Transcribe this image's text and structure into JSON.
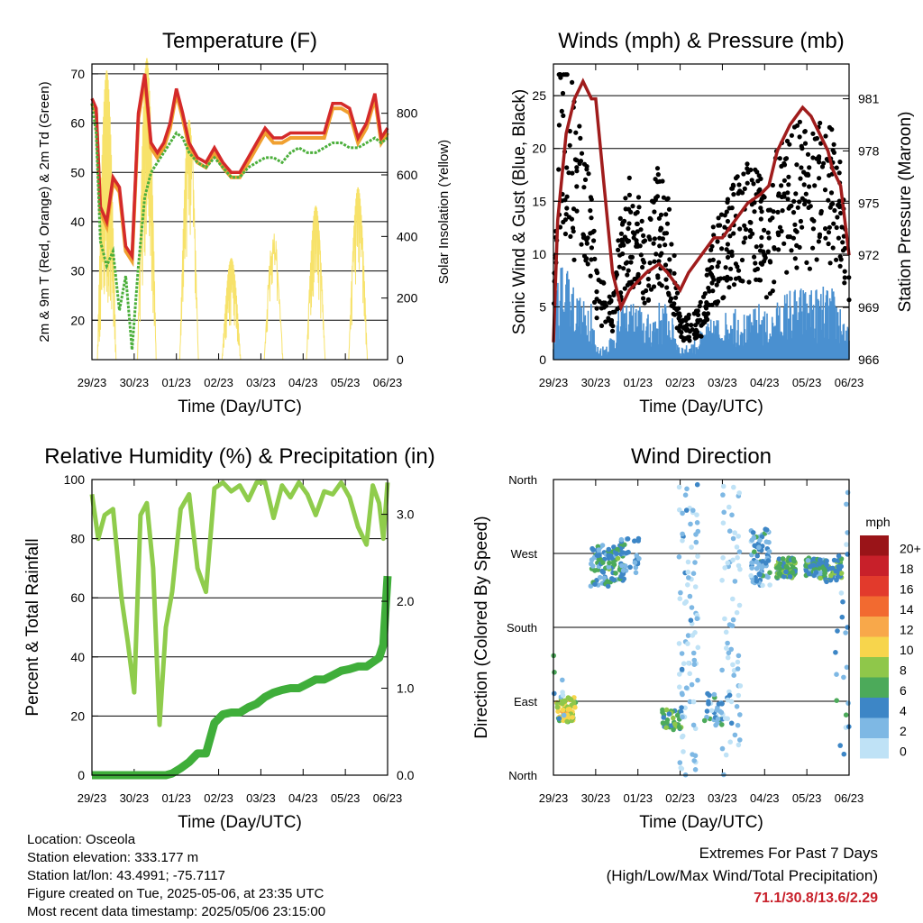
{
  "chart_data": [
    {
      "id": "temperature",
      "type": "line",
      "title": "Temperature (F)",
      "xlabel": "Time (Day/UTC)",
      "ylabel": "2m & 9m T (Red, Orange) & 2m Td (Green)",
      "ylabel_right": "Solar Insolation (Yellow)",
      "x_ticks": [
        "29/23",
        "30/23",
        "01/23",
        "02/23",
        "03/23",
        "04/23",
        "05/23",
        "06/23"
      ],
      "ylim": [
        12,
        72
      ],
      "yticks": [
        20,
        30,
        40,
        50,
        60,
        70
      ],
      "ylim_right": [
        0,
        960
      ],
      "yticks_right": [
        0,
        200,
        400,
        600,
        800
      ],
      "grid": "horizontal",
      "colors": {
        "t2m": "#d42a2a",
        "t9m": "#f0a030",
        "td": "#4caf3c",
        "solar": "#f7e26a"
      },
      "x_day": [
        0,
        0.1,
        0.2,
        0.35,
        0.5,
        0.65,
        0.8,
        0.95,
        1.1,
        1.25,
        1.4,
        1.55,
        1.7,
        1.85,
        2.0,
        2.15,
        2.3,
        2.5,
        2.7,
        2.9,
        3.1,
        3.3,
        3.5,
        3.7,
        3.9,
        4.1,
        4.3,
        4.5,
        4.7,
        4.9,
        5.1,
        5.3,
        5.5,
        5.7,
        5.9,
        6.1,
        6.3,
        6.5,
        6.7,
        6.85,
        7.0
      ],
      "series": [
        {
          "name": "2m T",
          "values": [
            65,
            63,
            43,
            40,
            49,
            47,
            35,
            33,
            62,
            70,
            56,
            54,
            56,
            60,
            67,
            62,
            56,
            53,
            52,
            55,
            52,
            50,
            50,
            53,
            56,
            59,
            57,
            57,
            58,
            58,
            58,
            58,
            58,
            64,
            64,
            63,
            57,
            60,
            66,
            57,
            59
          ]
        },
        {
          "name": "9m T",
          "values": [
            64,
            62,
            42,
            39,
            48,
            46,
            34,
            32,
            61,
            69,
            55,
            53,
            55,
            59,
            66,
            61,
            55,
            52,
            51,
            54,
            51,
            49,
            49,
            52,
            55,
            58,
            56,
            56,
            57,
            57,
            57,
            57,
            57,
            63,
            63,
            62,
            56,
            59,
            65,
            56,
            58
          ]
        },
        {
          "name": "2m Td",
          "values": [
            64,
            58,
            36,
            31,
            34,
            22,
            29,
            14,
            31,
            45,
            50,
            52,
            54,
            56,
            58,
            57,
            54,
            52,
            51,
            53,
            51,
            49,
            49,
            51,
            52,
            53,
            53,
            52,
            54,
            55,
            54,
            54,
            55,
            56,
            56,
            55,
            55,
            56,
            57,
            56,
            57
          ]
        }
      ],
      "solar": {
        "days": [
          0.35,
          1.3,
          2.3,
          3.3,
          4.3,
          5.3,
          6.3
        ],
        "peaks": [
          940,
          980,
          780,
          330,
          360,
          500,
          560
        ],
        "secondary": [
          450,
          700,
          820,
          260,
          440,
          480,
          540
        ]
      }
    },
    {
      "id": "winds",
      "type": "scatter",
      "title": "Winds (mph) & Pressure (mb)",
      "xlabel": "Time (Day/UTC)",
      "ylabel": "Sonic Wind & Gust (Blue, Black)",
      "ylabel_right": "Station Pressure (Maroon)",
      "x_ticks": [
        "29/23",
        "30/23",
        "01/23",
        "02/23",
        "03/23",
        "04/23",
        "05/23",
        "06/23"
      ],
      "ylim": [
        0,
        28
      ],
      "yticks": [
        0,
        5,
        10,
        15,
        20,
        25
      ],
      "ylim_right": [
        966,
        983
      ],
      "yticks_right": [
        966,
        969,
        972,
        975,
        978,
        981
      ],
      "grid": "horizontal",
      "colors": {
        "gust": "#000000",
        "wind": "#4a90d0",
        "pressure": "#a01c1c"
      },
      "x_day": [
        0,
        0.1,
        0.3,
        0.5,
        0.7,
        0.9,
        1.0,
        1.2,
        1.4,
        1.6,
        1.8,
        2.0,
        2.2,
        2.5,
        2.7,
        3.0,
        3.2,
        3.5,
        3.8,
        4.0,
        4.3,
        4.6,
        4.9,
        5.1,
        5.3,
        5.6,
        5.9,
        6.1,
        6.3,
        6.5,
        6.6,
        6.8,
        7.0
      ],
      "gust": [
        3,
        20,
        21,
        17,
        14,
        13,
        6,
        5,
        4,
        10,
        12,
        11,
        9,
        13,
        12,
        3,
        3,
        4,
        9,
        10,
        12,
        13,
        12,
        10,
        14,
        15,
        16,
        15,
        16,
        16,
        15,
        13,
        6
      ],
      "wind": [
        2,
        6,
        8,
        5,
        4,
        5,
        1,
        1,
        2,
        4,
        4,
        4,
        3,
        4,
        4,
        1,
        1,
        2,
        3,
        3,
        4,
        3,
        4,
        3,
        4,
        5,
        5,
        5,
        5,
        5,
        5,
        4,
        2
      ],
      "pressure": [
        967,
        974,
        979,
        981,
        982,
        981,
        981,
        976,
        971,
        969,
        970,
        970.5,
        971,
        971.5,
        971,
        970,
        971,
        972,
        973,
        973,
        974,
        975,
        975.5,
        976,
        978,
        979.5,
        980.5,
        980,
        979,
        978,
        977,
        976,
        972
      ]
    },
    {
      "id": "humidity",
      "type": "line",
      "title": "Relative Humidity (%) & Precipitation (in)",
      "xlabel": "Time (Day/UTC)",
      "ylabel": "Percent & Total Rainfall",
      "x_ticks": [
        "29/23",
        "30/23",
        "01/23",
        "02/23",
        "03/23",
        "04/23",
        "05/23",
        "06/23"
      ],
      "ylim": [
        0,
        100
      ],
      "yticks": [
        0,
        20,
        40,
        60,
        80,
        100
      ],
      "ylim_right": [
        0,
        3.4
      ],
      "yticks_right": [
        "0.0",
        "1.0",
        "2.0",
        "3.0"
      ],
      "grid": "horizontal",
      "colors": {
        "rh": "#8fcc4c",
        "precip": "#3fae3a"
      },
      "x_day": [
        0,
        0.15,
        0.3,
        0.5,
        0.7,
        0.85,
        1.0,
        1.15,
        1.3,
        1.45,
        1.6,
        1.75,
        1.9,
        2.1,
        2.3,
        2.5,
        2.7,
        2.9,
        3.1,
        3.3,
        3.5,
        3.7,
        3.9,
        4.1,
        4.3,
        4.5,
        4.7,
        4.9,
        5.1,
        5.3,
        5.5,
        5.7,
        5.9,
        6.1,
        6.3,
        6.5,
        6.65,
        6.8,
        6.9,
        7.0
      ],
      "rh": [
        95,
        80,
        88,
        90,
        60,
        45,
        28,
        88,
        92,
        70,
        17,
        50,
        62,
        90,
        95,
        70,
        62,
        97,
        99,
        96,
        98,
        93,
        99,
        99,
        87,
        98,
        94,
        99,
        95,
        88,
        96,
        95,
        99,
        94,
        84,
        78,
        98,
        92,
        80,
        99
      ],
      "precip": [
        0,
        0,
        0,
        0,
        0,
        0,
        0,
        0,
        0,
        0,
        0,
        0,
        0.02,
        0.08,
        0.15,
        0.25,
        0.25,
        0.6,
        0.7,
        0.72,
        0.72,
        0.78,
        0.82,
        0.9,
        0.95,
        0.98,
        1.0,
        1.0,
        1.05,
        1.1,
        1.1,
        1.15,
        1.2,
        1.22,
        1.25,
        1.25,
        1.3,
        1.35,
        1.5,
        2.29
      ]
    },
    {
      "id": "wind_direction",
      "type": "scatter",
      "title": "Wind Direction",
      "xlabel": "Time (Day/UTC)",
      "ylabel": "Direction (Colored By Speed)",
      "x_ticks": [
        "29/23",
        "30/23",
        "01/23",
        "02/23",
        "03/23",
        "04/23",
        "05/23",
        "06/23"
      ],
      "y_categories": [
        "North",
        "West",
        "South",
        "East",
        "North"
      ],
      "ylim_deg": [
        0,
        360
      ],
      "grid": "horizontal",
      "colorbar": {
        "title": "mph",
        "labels": [
          "20+",
          "18",
          "16",
          "14",
          "12",
          "10",
          "8",
          "6",
          "4",
          "2",
          "0"
        ],
        "colors": [
          "#9a1418",
          "#c8202a",
          "#e23a2c",
          "#f26a30",
          "#f8a84a",
          "#f7d54c",
          "#8fc74a",
          "#4caa5a",
          "#3d86c6",
          "#7eb8e4",
          "#bfe2f6"
        ]
      },
      "clusters": [
        {
          "day": 0.3,
          "dir_min": 265,
          "dir_max": 295,
          "speed": 9,
          "n": 60
        },
        {
          "day": 0.05,
          "dir_min": 210,
          "dir_max": 300,
          "speed": 3,
          "n": 14
        },
        {
          "day": 1.1,
          "dir_min": 80,
          "dir_max": 130,
          "speed": 4,
          "n": 50
        },
        {
          "day": 1.5,
          "dir_min": 75,
          "dir_max": 125,
          "speed": 5,
          "n": 60
        },
        {
          "day": 1.8,
          "dir_min": 70,
          "dir_max": 115,
          "speed": 3,
          "n": 25
        },
        {
          "day": 2.8,
          "dir_min": 280,
          "dir_max": 305,
          "speed": 6,
          "n": 35
        },
        {
          "day": 3.2,
          "dir_min": 0,
          "dir_max": 360,
          "speed": 1,
          "n": 90
        },
        {
          "day": 3.8,
          "dir_min": 260,
          "dir_max": 300,
          "speed": 3,
          "n": 30
        },
        {
          "day": 4.2,
          "dir_min": 0,
          "dir_max": 360,
          "speed": 1,
          "n": 70
        },
        {
          "day": 4.9,
          "dir_min": 60,
          "dir_max": 130,
          "speed": 3,
          "n": 70
        },
        {
          "day": 5.5,
          "dir_min": 95,
          "dir_max": 120,
          "speed": 6,
          "n": 80
        },
        {
          "day": 6.2,
          "dir_min": 95,
          "dir_max": 120,
          "speed": 5,
          "n": 70
        },
        {
          "day": 6.6,
          "dir_min": 95,
          "dir_max": 125,
          "speed": 6,
          "n": 50
        },
        {
          "day": 6.9,
          "dir_min": 0,
          "dir_max": 360,
          "speed": 3,
          "n": 30
        }
      ]
    }
  ],
  "station": {
    "location": "Location: Osceola",
    "elevation": "Station elevation: 333.177 m",
    "latlon": "Station lat/lon: 43.4991; -75.7117",
    "created": "Figure created on Tue, 2025-05-06, at 23:35 UTC",
    "recent": "Most recent data timestamp: 2025/05/06 23:15:00"
  },
  "extremes": {
    "heading": "Extremes For Past 7 Days",
    "subheading": "(High/Low/Max Wind/Total Precipitation)",
    "values": "71.1/30.8/13.6/2.29"
  }
}
